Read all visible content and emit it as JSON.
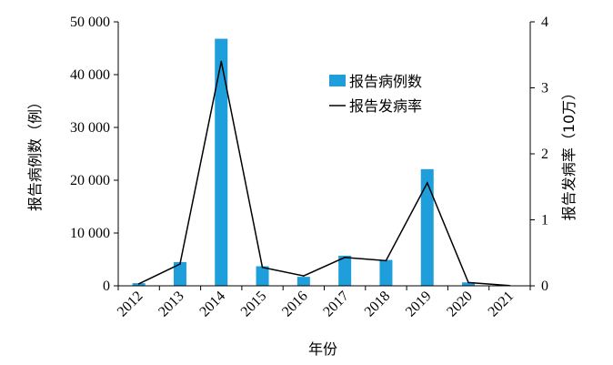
{
  "chart_data": {
    "type": "bar",
    "categories": [
      "2012",
      "2013",
      "2014",
      "2015",
      "2016",
      "2017",
      "2018",
      "2019",
      "2020",
      "2021"
    ],
    "series": [
      {
        "name": "报告病例数",
        "type": "bar",
        "axis": "left",
        "color": "#1e9fdc",
        "values": [
          500,
          4500,
          46800,
          3700,
          1700,
          5700,
          4900,
          22100,
          650,
          40
        ]
      },
      {
        "name": "报告发病率",
        "type": "line",
        "axis": "right",
        "color": "#000000",
        "values": [
          0.03,
          0.33,
          3.4,
          0.28,
          0.15,
          0.43,
          0.38,
          1.56,
          0.05,
          0.003
        ]
      }
    ],
    "xlabel": "年份",
    "ylabel": "报告病例数（例）",
    "y2label": "报告发病率（10万）",
    "ylim": [
      0,
      50000
    ],
    "y2lim": [
      0,
      4
    ],
    "yticks": [
      "0",
      "10 000",
      "20 000",
      "30 000",
      "40 000",
      "50 000"
    ],
    "y2ticks": [
      "0",
      "1",
      "2",
      "3",
      "4"
    ],
    "grid": false,
    "legend": "top-right"
  }
}
